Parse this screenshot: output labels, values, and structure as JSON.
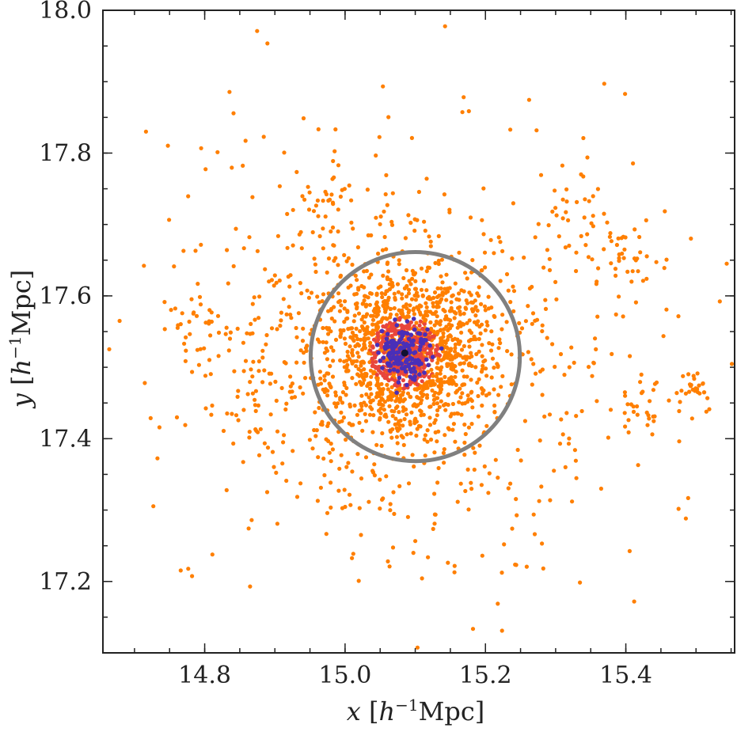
{
  "chart_data": {
    "type": "scatter",
    "title": "",
    "xlabel": {
      "var": "x",
      "unit_open": " [",
      "unit_h": "h",
      "unit_exp": "−1",
      "unit_rest": "Mpc]"
    },
    "ylabel": {
      "var": "y",
      "unit_open": " [",
      "unit_h": "h",
      "unit_exp": "−1",
      "unit_rest": "Mpc]"
    },
    "xlim": [
      14.655,
      15.555
    ],
    "ylim": [
      17.1,
      18.0
    ],
    "xticks": [
      {
        "value": 14.8,
        "label": "14.8"
      },
      {
        "value": 15.0,
        "label": "15.0"
      },
      {
        "value": 15.2,
        "label": "15.2"
      },
      {
        "value": 15.4,
        "label": "15.4"
      }
    ],
    "yticks": [
      {
        "value": 17.2,
        "label": "17.2"
      },
      {
        "value": 17.4,
        "label": "17.4"
      },
      {
        "value": 17.6,
        "label": "17.6"
      },
      {
        "value": 17.8,
        "label": "17.8"
      },
      {
        "value": 18.0,
        "label": "18.0"
      }
    ],
    "x_minor_step": 0.05,
    "y_minor_step": 0.05,
    "grid": false,
    "halo": {
      "center": [
        15.085,
        17.52
      ],
      "outer_points": 1250,
      "inner_points": 900,
      "core_points": 160,
      "outer_scale": 0.16,
      "inner_scale": 0.055,
      "core_scale": 0.018
    },
    "circle": {
      "center": [
        15.1,
        17.515
      ],
      "radius": 0.149,
      "color": "#808080"
    },
    "colors": {
      "outer": "#ff7f00",
      "inner": "#e8453c",
      "core": "#4a2fb8",
      "center": "#111133",
      "axis": "#222222"
    }
  }
}
